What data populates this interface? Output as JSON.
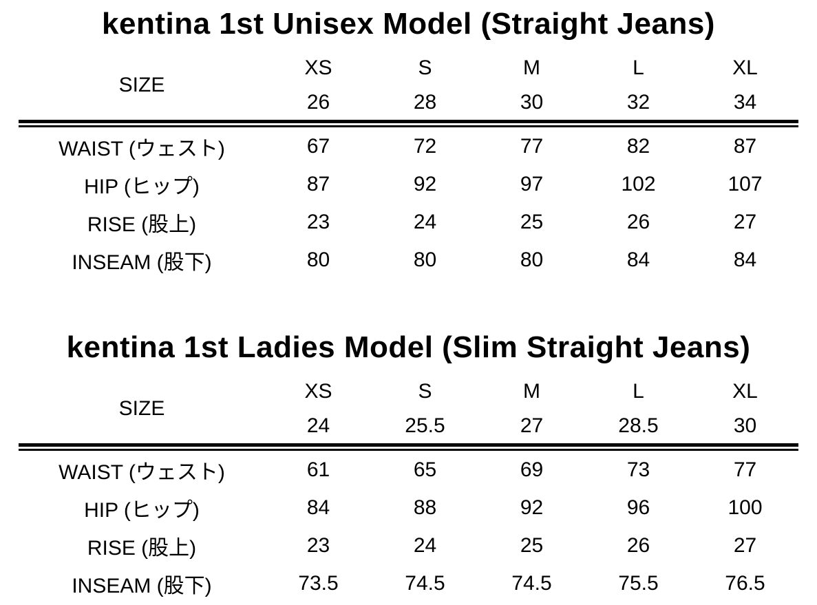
{
  "page": {
    "background_color": "#ffffff",
    "text_color": "#000000"
  },
  "chart_data": [
    {
      "type": "table",
      "title": "kentina 1st Unisex Model (Straight Jeans)",
      "corner_label": "SIZE",
      "column_headers": [
        [
          "XS",
          "26"
        ],
        [
          "S",
          "28"
        ],
        [
          "M",
          "30"
        ],
        [
          "L",
          "32"
        ],
        [
          "XL",
          "34"
        ]
      ],
      "row_labels": [
        "WAIST (ウェスト)",
        "HIP (ヒップ)",
        "RISE (股上)",
        "INSEAM (股下)"
      ],
      "values": [
        [
          67,
          72,
          77,
          82,
          87
        ],
        [
          87,
          92,
          97,
          102,
          107
        ],
        [
          23,
          24,
          25,
          26,
          27
        ],
        [
          80,
          80,
          80,
          84,
          84
        ]
      ],
      "layout": {
        "grid": "off",
        "header_divider": "thick-double-line"
      }
    },
    {
      "type": "table",
      "title": "kentina 1st Ladies Model (Slim Straight Jeans)",
      "corner_label": "SIZE",
      "column_headers": [
        [
          "XS",
          "24"
        ],
        [
          "S",
          "25.5"
        ],
        [
          "M",
          "27"
        ],
        [
          "L",
          "28.5"
        ],
        [
          "XL",
          "30"
        ]
      ],
      "row_labels": [
        "WAIST (ウェスト)",
        "HIP (ヒップ)",
        "RISE (股上)",
        "INSEAM (股下)"
      ],
      "values": [
        [
          61,
          65,
          69,
          73,
          77
        ],
        [
          84,
          88,
          92,
          96,
          100
        ],
        [
          23,
          24,
          25,
          26,
          27
        ],
        [
          73.5,
          74.5,
          74.5,
          75.5,
          76.5
        ]
      ],
      "layout": {
        "grid": "off",
        "header_divider": "thick-double-line"
      }
    }
  ]
}
